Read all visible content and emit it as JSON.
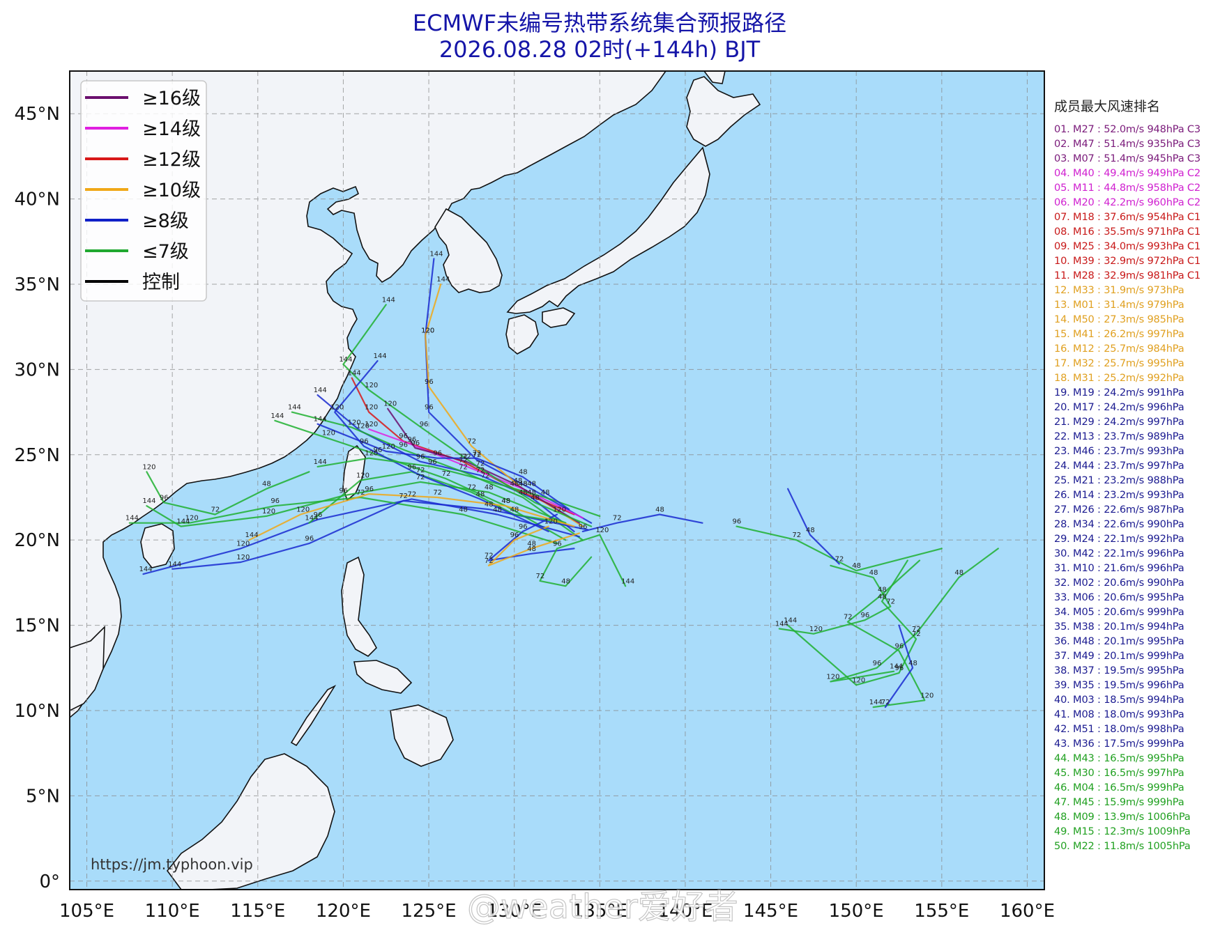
{
  "title": {
    "line1": "ECMWF未编号热带系统集合预报路径",
    "line2": "2026.08.28 02时(+144h) BJT"
  },
  "map": {
    "lon_range": [
      104,
      161
    ],
    "lat_range": [
      -0.5,
      47.5
    ],
    "lon_ticks": [
      "105°E",
      "110°E",
      "115°E",
      "120°E",
      "125°E",
      "130°E",
      "135°E",
      "140°E",
      "145°E",
      "150°E",
      "155°E",
      "160°E"
    ],
    "lat_ticks": [
      "0°",
      "5°N",
      "10°N",
      "15°N",
      "20°N",
      "25°N",
      "30°N",
      "35°N",
      "40°N",
      "45°N"
    ],
    "ocean_color": "#a9dcfa",
    "land_color": "#f2f4f8",
    "grid": true
  },
  "legend": {
    "items": [
      {
        "label": "≥16级",
        "color": "#6b0f6e"
      },
      {
        "label": "≥14级",
        "color": "#e020e0"
      },
      {
        "label": "≥12级",
        "color": "#d81818"
      },
      {
        "label": "≥10级",
        "color": "#f0a818"
      },
      {
        "label": "≥8级",
        "color": "#1020c8"
      },
      {
        "label": "≤7级",
        "color": "#20a830"
      },
      {
        "label": "控制",
        "color": "#000000"
      }
    ]
  },
  "ranking": {
    "title": "成员最大风速排名",
    "rows": [
      {
        "text": "01. M27 : 52.0m/s 948hPa C3",
        "color": "#7a1a7a"
      },
      {
        "text": "02. M47 : 51.4m/s 935hPa C3",
        "color": "#7a1a7a"
      },
      {
        "text": "03. M07 : 51.4m/s 945hPa C3",
        "color": "#7a1a7a"
      },
      {
        "text": "04. M40 : 49.4m/s 949hPa C2",
        "color": "#d020d0"
      },
      {
        "text": "05. M11 : 44.8m/s 958hPa C2",
        "color": "#d020d0"
      },
      {
        "text": "06. M20 : 42.2m/s 960hPa C2",
        "color": "#d020d0"
      },
      {
        "text": "07. M18 : 37.6m/s 954hPa C1",
        "color": "#c81818"
      },
      {
        "text": "08. M16 : 35.5m/s 971hPa C1",
        "color": "#c81818"
      },
      {
        "text": "09. M25 : 34.0m/s 993hPa C1",
        "color": "#c81818"
      },
      {
        "text": "10. M39 : 32.9m/s 972hPa C1",
        "color": "#c81818"
      },
      {
        "text": "11. M28 : 32.9m/s 981hPa C1",
        "color": "#c81818"
      },
      {
        "text": "12. M33 : 31.9m/s 973hPa",
        "color": "#e0a020"
      },
      {
        "text": "13. M01 : 31.4m/s 979hPa",
        "color": "#e0a020"
      },
      {
        "text": "14. M50 : 27.3m/s 985hPa",
        "color": "#e0a020"
      },
      {
        "text": "15. M41 : 26.2m/s 997hPa",
        "color": "#e0a020"
      },
      {
        "text": "16. M12 : 25.7m/s 984hPa",
        "color": "#e0a020"
      },
      {
        "text": "17. M32 : 25.7m/s 995hPa",
        "color": "#e0a020"
      },
      {
        "text": "18. M31 : 25.2m/s 992hPa",
        "color": "#e0a020"
      },
      {
        "text": "19. M19 : 24.2m/s 991hPa",
        "color": "#1a1a90"
      },
      {
        "text": "20. M17 : 24.2m/s 996hPa",
        "color": "#1a1a90"
      },
      {
        "text": "21. M29 : 24.2m/s 997hPa",
        "color": "#1a1a90"
      },
      {
        "text": "22. M13 : 23.7m/s 989hPa",
        "color": "#1a1a90"
      },
      {
        "text": "23. M46 : 23.7m/s 993hPa",
        "color": "#1a1a90"
      },
      {
        "text": "24. M44 : 23.7m/s 997hPa",
        "color": "#1a1a90"
      },
      {
        "text": "25. M21 : 23.2m/s 988hPa",
        "color": "#1a1a90"
      },
      {
        "text": "26. M14 : 23.2m/s 993hPa",
        "color": "#1a1a90"
      },
      {
        "text": "27. M26 : 22.6m/s 987hPa",
        "color": "#1a1a90"
      },
      {
        "text": "28. M34 : 22.6m/s 990hPa",
        "color": "#1a1a90"
      },
      {
        "text": "29. M24 : 22.1m/s 992hPa",
        "color": "#1a1a90"
      },
      {
        "text": "30. M42 : 22.1m/s 996hPa",
        "color": "#1a1a90"
      },
      {
        "text": "31. M10 : 21.6m/s 996hPa",
        "color": "#1a1a90"
      },
      {
        "text": "32. M02 : 20.6m/s 990hPa",
        "color": "#1a1a90"
      },
      {
        "text": "33. M06 : 20.6m/s 995hPa",
        "color": "#1a1a90"
      },
      {
        "text": "34. M05 : 20.6m/s 999hPa",
        "color": "#1a1a90"
      },
      {
        "text": "35. M38 : 20.1m/s 994hPa",
        "color": "#1a1a90"
      },
      {
        "text": "36. M48 : 20.1m/s 995hPa",
        "color": "#1a1a90"
      },
      {
        "text": "37. M49 : 20.1m/s 999hPa",
        "color": "#1a1a90"
      },
      {
        "text": "38. M37 : 19.5m/s 995hPa",
        "color": "#1a1a90"
      },
      {
        "text": "39. M35 : 19.5m/s 996hPa",
        "color": "#1a1a90"
      },
      {
        "text": "40. M03 : 18.5m/s 994hPa",
        "color": "#1a1a90"
      },
      {
        "text": "41. M08 : 18.0m/s 993hPa",
        "color": "#1a1a90"
      },
      {
        "text": "42. M51 : 18.0m/s 998hPa",
        "color": "#1a1a90"
      },
      {
        "text": "43. M36 : 17.5m/s 999hPa",
        "color": "#1a1a90"
      },
      {
        "text": "44. M43 : 16.5m/s 995hPa",
        "color": "#20a020"
      },
      {
        "text": "45. M30 : 16.5m/s 997hPa",
        "color": "#20a020"
      },
      {
        "text": "46. M04 : 16.5m/s 999hPa",
        "color": "#20a020"
      },
      {
        "text": "47. M45 : 15.9m/s 999hPa",
        "color": "#20a020"
      },
      {
        "text": "48. M09 : 13.9m/s 1006hPa",
        "color": "#20a020"
      },
      {
        "text": "49. M15 : 12.3m/s 1009hPa",
        "color": "#20a020"
      },
      {
        "text": "50. M22 : 11.8m/s 1005hPa",
        "color": "#20a020"
      }
    ]
  },
  "source_url": "https://jm.typhoon.vip",
  "watermark": "@weather爱好者",
  "track_labels": [
    "144",
    "120",
    "96",
    "72",
    "48",
    "24"
  ]
}
